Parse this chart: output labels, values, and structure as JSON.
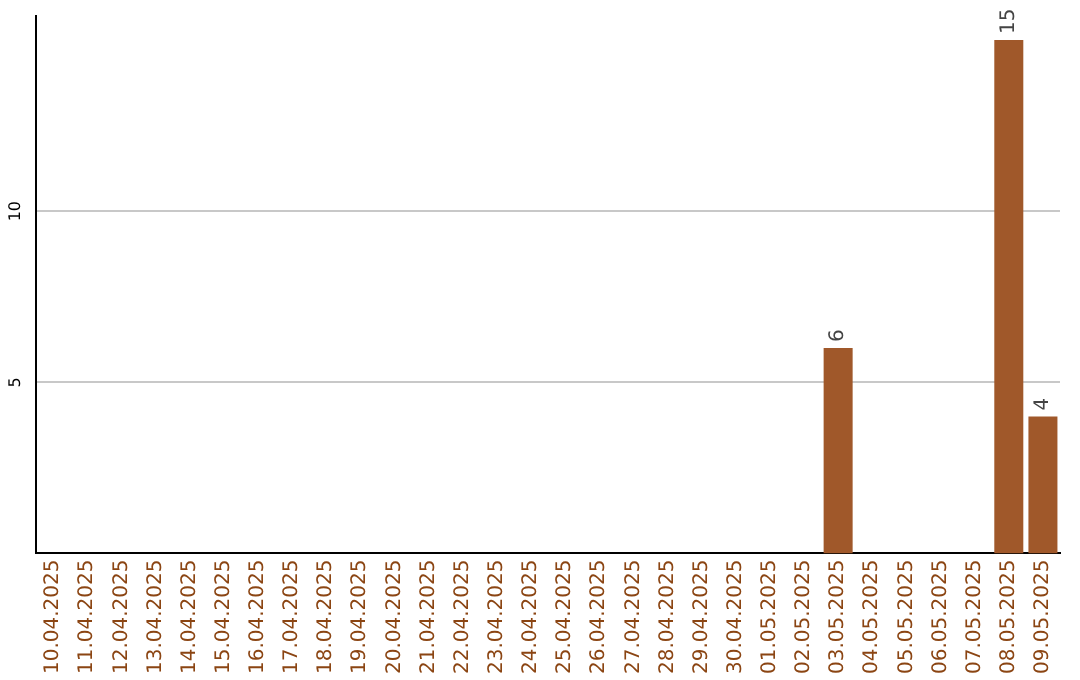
{
  "chart_data": {
    "type": "bar",
    "categories": [
      "10.04.2025",
      "11.04.2025",
      "12.04.2025",
      "13.04.2025",
      "14.04.2025",
      "15.04.2025",
      "16.04.2025",
      "17.04.2025",
      "18.04.2025",
      "19.04.2025",
      "20.04.2025",
      "21.04.2025",
      "22.04.2025",
      "23.04.2025",
      "24.04.2025",
      "25.04.2025",
      "26.04.2025",
      "27.04.2025",
      "28.04.2025",
      "29.04.2025",
      "30.04.2025",
      "01.05.2025",
      "02.05.2025",
      "03.05.2025",
      "04.05.2025",
      "05.05.2025",
      "06.05.2025",
      "07.05.2025",
      "08.05.2025",
      "09.05.2025"
    ],
    "values": [
      0,
      0,
      0,
      0,
      0,
      0,
      0,
      0,
      0,
      0,
      0,
      0,
      0,
      0,
      0,
      0,
      0,
      0,
      0,
      0,
      0,
      0,
      0,
      6,
      0,
      0,
      0,
      0,
      15,
      4
    ],
    "value_labels": [
      null,
      null,
      null,
      null,
      null,
      null,
      null,
      null,
      null,
      null,
      null,
      null,
      null,
      null,
      null,
      null,
      null,
      null,
      null,
      null,
      null,
      null,
      null,
      "6",
      null,
      null,
      null,
      null,
      "15",
      "4"
    ],
    "color": "#a0582a",
    "ylim": [
      0,
      15.7
    ],
    "yticks": [
      5,
      10
    ],
    "grid": "y",
    "legend": false
  }
}
